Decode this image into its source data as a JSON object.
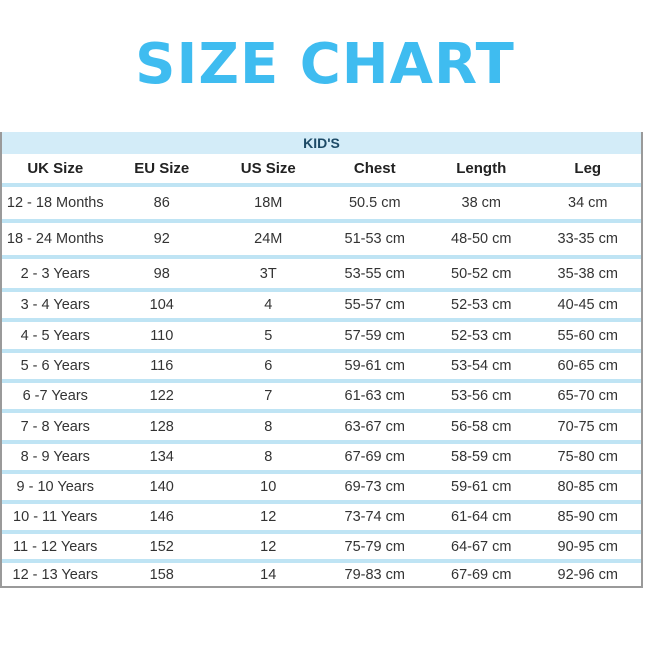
{
  "title": "SIZE CHART",
  "table": {
    "section": "KID'S",
    "columns": [
      "UK Size",
      "EU Size",
      "US Size",
      "Chest",
      "Length",
      "Leg"
    ],
    "rows": [
      [
        "12 - 18 Months",
        "86",
        "18M",
        "50.5 cm",
        "38 cm",
        "34 cm"
      ],
      [
        "18 - 24 Months",
        "92",
        "24M",
        "51-53 cm",
        "48-50 cm",
        "33-35 cm"
      ],
      [
        "2 - 3 Years",
        "98",
        "3T",
        "53-55 cm",
        "50-52 cm",
        "35-38 cm"
      ],
      [
        "3 - 4 Years",
        "104",
        "4",
        "55-57 cm",
        "52-53 cm",
        "40-45 cm"
      ],
      [
        "4 - 5 Years",
        "110",
        "5",
        "57-59 cm",
        "52-53 cm",
        "55-60 cm"
      ],
      [
        "5 - 6 Years",
        "116",
        "6",
        "59-61 cm",
        "53-54 cm",
        "60-65 cm"
      ],
      [
        "6 -7 Years",
        "122",
        "7",
        "61-63 cm",
        "53-56 cm",
        "65-70 cm"
      ],
      [
        "7 - 8 Years",
        "128",
        "8",
        "63-67 cm",
        "56-58 cm",
        "70-75 cm"
      ],
      [
        "8 - 9 Years",
        "134",
        "8",
        "67-69 cm",
        "58-59 cm",
        "75-80 cm"
      ],
      [
        "9 - 10 Years",
        "140",
        "10",
        "69-73 cm",
        "59-61 cm",
        "80-85 cm"
      ],
      [
        "10 - 11 Years",
        "146",
        "12",
        "73-74 cm",
        "61-64 cm",
        "85-90 cm"
      ],
      [
        "11 - 12 Years",
        "152",
        "12",
        "75-79 cm",
        "64-67 cm",
        "90-95 cm"
      ],
      [
        "12 - 13 Years",
        "158",
        "14",
        "79-83 cm",
        "67-69 cm",
        "92-96 cm"
      ]
    ]
  },
  "colors": {
    "title": "#3fbcf0",
    "band": "#d3ecf8",
    "separator": "#bfe4f4"
  }
}
